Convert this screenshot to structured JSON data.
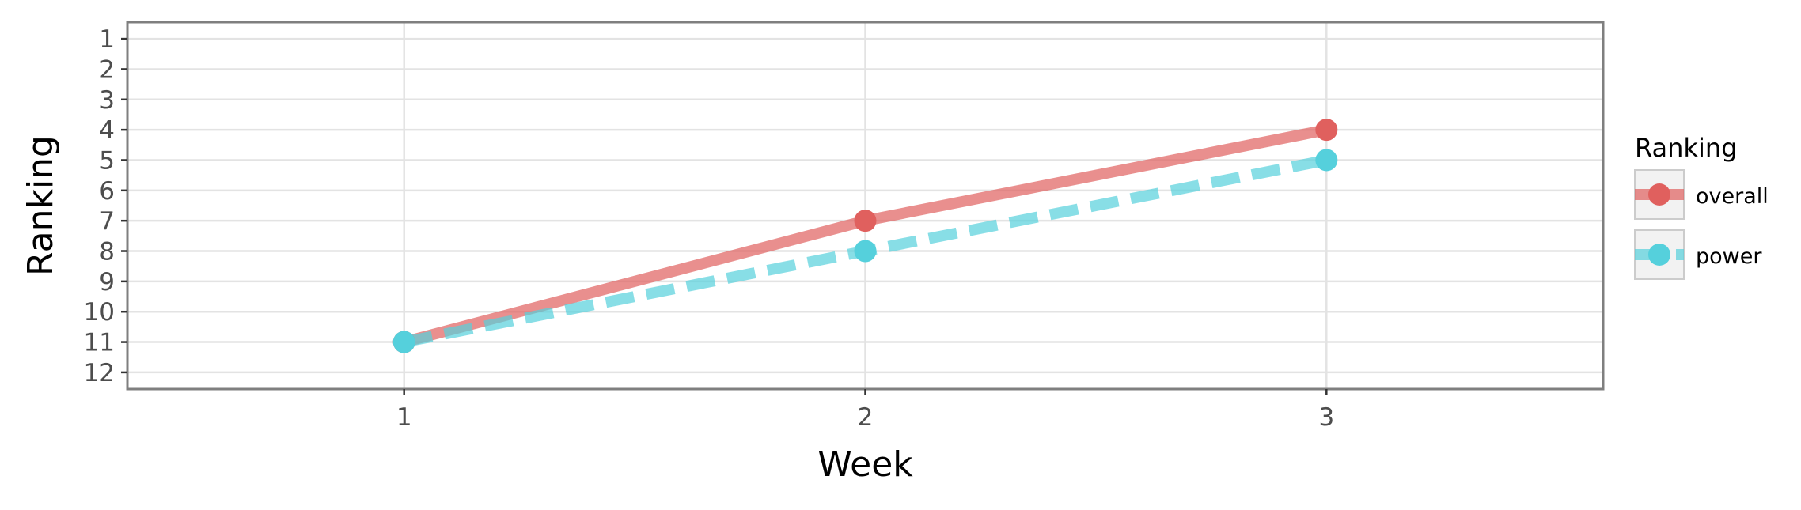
{
  "chart_data": {
    "type": "line",
    "xlabel": "Week",
    "ylabel": "Ranking",
    "x": [
      1,
      2,
      3
    ],
    "x_ticks": [
      "1",
      "2",
      "3"
    ],
    "xlim": [
      0.4,
      3.6
    ],
    "y_ticks": [
      "1",
      "2",
      "3",
      "4",
      "5",
      "6",
      "7",
      "8",
      "9",
      "10",
      "11",
      "12"
    ],
    "ylim": [
      12.55,
      0.45
    ],
    "y_reversed": true,
    "grid": true,
    "legend": {
      "title": "Ranking",
      "placement": "right"
    },
    "series": [
      {
        "name": "overall",
        "values": [
          11,
          7,
          4
        ],
        "color": "#E0605E",
        "line_style": "solid"
      },
      {
        "name": "power",
        "values": [
          11,
          8,
          5
        ],
        "color": "#55D0DC",
        "line_style": "dashed"
      }
    ]
  }
}
